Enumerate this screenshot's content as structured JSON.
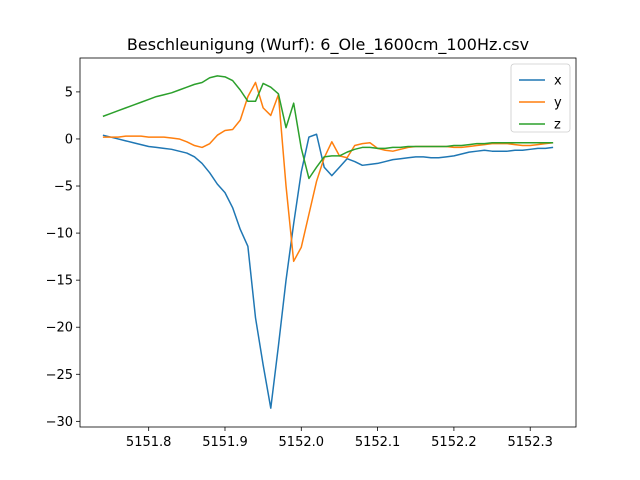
{
  "chart_data": {
    "type": "line",
    "title": "Beschleunigung (Wurf): 6_Ole_1600cm_100Hz.csv",
    "xlabel": "",
    "ylabel": "",
    "xlim": [
      5151.71,
      5152.36
    ],
    "ylim": [
      -30.6,
      8.6
    ],
    "xticks": [
      5151.8,
      5151.9,
      5152.0,
      5152.1,
      5152.2,
      5152.3
    ],
    "xtick_labels": [
      "5151.8",
      "5151.9",
      "5152.0",
      "5152.1",
      "5152.2",
      "5152.3"
    ],
    "yticks": [
      5,
      0,
      -5,
      -10,
      -15,
      -20,
      -25,
      -30
    ],
    "ytick_labels": [
      "5",
      "0",
      "−5",
      "−10",
      "−15",
      "−20",
      "−25",
      "−30"
    ],
    "grid": false,
    "legend": "top-right",
    "series": [
      {
        "name": "x",
        "color": "#1f77b4",
        "points": [
          [
            5151.74,
            0.4
          ],
          [
            5151.75,
            0.2
          ],
          [
            5151.76,
            0.0
          ],
          [
            5151.77,
            -0.2
          ],
          [
            5151.78,
            -0.4
          ],
          [
            5151.79,
            -0.6
          ],
          [
            5151.8,
            -0.8
          ],
          [
            5151.81,
            -0.9
          ],
          [
            5151.82,
            -1.0
          ],
          [
            5151.83,
            -1.1
          ],
          [
            5151.84,
            -1.3
          ],
          [
            5151.85,
            -1.5
          ],
          [
            5151.86,
            -1.9
          ],
          [
            5151.87,
            -2.6
          ],
          [
            5151.88,
            -3.6
          ],
          [
            5151.89,
            -4.8
          ],
          [
            5151.9,
            -5.7
          ],
          [
            5151.91,
            -7.3
          ],
          [
            5151.92,
            -9.6
          ],
          [
            5151.93,
            -11.4
          ],
          [
            5151.94,
            -19.0
          ],
          [
            5151.95,
            -24.0
          ],
          [
            5151.96,
            -28.6
          ],
          [
            5151.97,
            -22.0
          ],
          [
            5151.98,
            -15.0
          ],
          [
            5151.99,
            -9.0
          ],
          [
            5152.0,
            -3.5
          ],
          [
            5152.01,
            0.2
          ],
          [
            5152.02,
            0.5
          ],
          [
            5152.03,
            -3.0
          ],
          [
            5152.04,
            -3.9
          ],
          [
            5152.05,
            -3.0
          ],
          [
            5152.06,
            -2.1
          ],
          [
            5152.07,
            -2.4
          ],
          [
            5152.08,
            -2.8
          ],
          [
            5152.09,
            -2.7
          ],
          [
            5152.1,
            -2.6
          ],
          [
            5152.11,
            -2.4
          ],
          [
            5152.12,
            -2.2
          ],
          [
            5152.13,
            -2.1
          ],
          [
            5152.14,
            -2.0
          ],
          [
            5152.15,
            -1.9
          ],
          [
            5152.16,
            -1.9
          ],
          [
            5152.17,
            -2.0
          ],
          [
            5152.18,
            -2.0
          ],
          [
            5152.19,
            -1.9
          ],
          [
            5152.2,
            -1.8
          ],
          [
            5152.21,
            -1.6
          ],
          [
            5152.22,
            -1.4
          ],
          [
            5152.23,
            -1.3
          ],
          [
            5152.24,
            -1.2
          ],
          [
            5152.25,
            -1.3
          ],
          [
            5152.26,
            -1.3
          ],
          [
            5152.27,
            -1.3
          ],
          [
            5152.28,
            -1.2
          ],
          [
            5152.29,
            -1.2
          ],
          [
            5152.3,
            -1.1
          ],
          [
            5152.31,
            -1.0
          ],
          [
            5152.32,
            -1.0
          ],
          [
            5152.33,
            -0.9
          ]
        ]
      },
      {
        "name": "y",
        "color": "#ff7f0e",
        "points": [
          [
            5151.74,
            0.2
          ],
          [
            5151.75,
            0.2
          ],
          [
            5151.76,
            0.2
          ],
          [
            5151.77,
            0.3
          ],
          [
            5151.78,
            0.3
          ],
          [
            5151.79,
            0.3
          ],
          [
            5151.8,
            0.2
          ],
          [
            5151.81,
            0.2
          ],
          [
            5151.82,
            0.2
          ],
          [
            5151.83,
            0.1
          ],
          [
            5151.84,
            0.0
          ],
          [
            5151.85,
            -0.3
          ],
          [
            5151.86,
            -0.7
          ],
          [
            5151.87,
            -0.9
          ],
          [
            5151.88,
            -0.5
          ],
          [
            5151.89,
            0.4
          ],
          [
            5151.9,
            0.9
          ],
          [
            5151.91,
            1.0
          ],
          [
            5151.92,
            2.0
          ],
          [
            5151.93,
            4.5
          ],
          [
            5151.94,
            6.0
          ],
          [
            5151.95,
            3.3
          ],
          [
            5151.96,
            2.5
          ],
          [
            5151.97,
            4.7
          ],
          [
            5151.98,
            -5.0
          ],
          [
            5151.99,
            -13.0
          ],
          [
            5152.0,
            -11.5
          ],
          [
            5152.01,
            -8.0
          ],
          [
            5152.02,
            -4.5
          ],
          [
            5152.03,
            -2.0
          ],
          [
            5152.04,
            -0.3
          ],
          [
            5152.05,
            -1.8
          ],
          [
            5152.06,
            -2.0
          ],
          [
            5152.07,
            -0.7
          ],
          [
            5152.08,
            -0.5
          ],
          [
            5152.09,
            -0.4
          ],
          [
            5152.1,
            -1.0
          ],
          [
            5152.11,
            -1.2
          ],
          [
            5152.12,
            -1.3
          ],
          [
            5152.13,
            -1.1
          ],
          [
            5152.14,
            -0.9
          ],
          [
            5152.15,
            -0.8
          ],
          [
            5152.16,
            -0.8
          ],
          [
            5152.17,
            -0.8
          ],
          [
            5152.18,
            -0.8
          ],
          [
            5152.19,
            -0.8
          ],
          [
            5152.2,
            -0.9
          ],
          [
            5152.21,
            -0.9
          ],
          [
            5152.22,
            -0.8
          ],
          [
            5152.23,
            -0.7
          ],
          [
            5152.24,
            -0.6
          ],
          [
            5152.25,
            -0.5
          ],
          [
            5152.26,
            -0.5
          ],
          [
            5152.27,
            -0.5
          ],
          [
            5152.28,
            -0.6
          ],
          [
            5152.29,
            -0.7
          ],
          [
            5152.3,
            -0.7
          ],
          [
            5152.31,
            -0.6
          ],
          [
            5152.32,
            -0.5
          ],
          [
            5152.33,
            -0.4
          ]
        ]
      },
      {
        "name": "z",
        "color": "#2ca02c",
        "points": [
          [
            5151.74,
            2.4
          ],
          [
            5151.75,
            2.7
          ],
          [
            5151.76,
            3.0
          ],
          [
            5151.77,
            3.3
          ],
          [
            5151.78,
            3.6
          ],
          [
            5151.79,
            3.9
          ],
          [
            5151.8,
            4.2
          ],
          [
            5151.81,
            4.5
          ],
          [
            5151.82,
            4.7
          ],
          [
            5151.83,
            4.9
          ],
          [
            5151.84,
            5.2
          ],
          [
            5151.85,
            5.5
          ],
          [
            5151.86,
            5.8
          ],
          [
            5151.87,
            6.0
          ],
          [
            5151.88,
            6.5
          ],
          [
            5151.89,
            6.7
          ],
          [
            5151.9,
            6.6
          ],
          [
            5151.91,
            6.2
          ],
          [
            5151.92,
            5.2
          ],
          [
            5151.93,
            4.0
          ],
          [
            5151.94,
            4.0
          ],
          [
            5151.95,
            5.9
          ],
          [
            5151.96,
            5.5
          ],
          [
            5151.97,
            4.8
          ],
          [
            5151.98,
            1.2
          ],
          [
            5151.99,
            3.8
          ],
          [
            5152.0,
            -1.0
          ],
          [
            5152.01,
            -4.2
          ],
          [
            5152.02,
            -3.0
          ],
          [
            5152.03,
            -1.9
          ],
          [
            5152.04,
            -1.8
          ],
          [
            5152.05,
            -1.8
          ],
          [
            5152.06,
            -1.4
          ],
          [
            5152.07,
            -1.1
          ],
          [
            5152.08,
            -0.9
          ],
          [
            5152.09,
            -0.9
          ],
          [
            5152.1,
            -1.0
          ],
          [
            5152.11,
            -1.0
          ],
          [
            5152.12,
            -0.9
          ],
          [
            5152.13,
            -0.9
          ],
          [
            5152.14,
            -0.8
          ],
          [
            5152.15,
            -0.8
          ],
          [
            5152.16,
            -0.8
          ],
          [
            5152.17,
            -0.8
          ],
          [
            5152.18,
            -0.8
          ],
          [
            5152.19,
            -0.8
          ],
          [
            5152.2,
            -0.7
          ],
          [
            5152.21,
            -0.7
          ],
          [
            5152.22,
            -0.6
          ],
          [
            5152.23,
            -0.5
          ],
          [
            5152.24,
            -0.5
          ],
          [
            5152.25,
            -0.4
          ],
          [
            5152.26,
            -0.4
          ],
          [
            5152.27,
            -0.4
          ],
          [
            5152.28,
            -0.4
          ],
          [
            5152.29,
            -0.4
          ],
          [
            5152.3,
            -0.4
          ],
          [
            5152.31,
            -0.4
          ],
          [
            5152.32,
            -0.4
          ],
          [
            5152.33,
            -0.4
          ]
        ]
      }
    ]
  }
}
